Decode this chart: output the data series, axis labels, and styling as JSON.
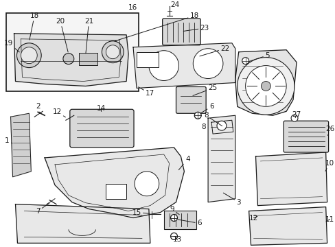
{
  "bg_color": "#ffffff",
  "line_color": "#1a1a1a",
  "figsize": [
    4.89,
    3.6
  ],
  "dpi": 100,
  "font_size": 7.5
}
